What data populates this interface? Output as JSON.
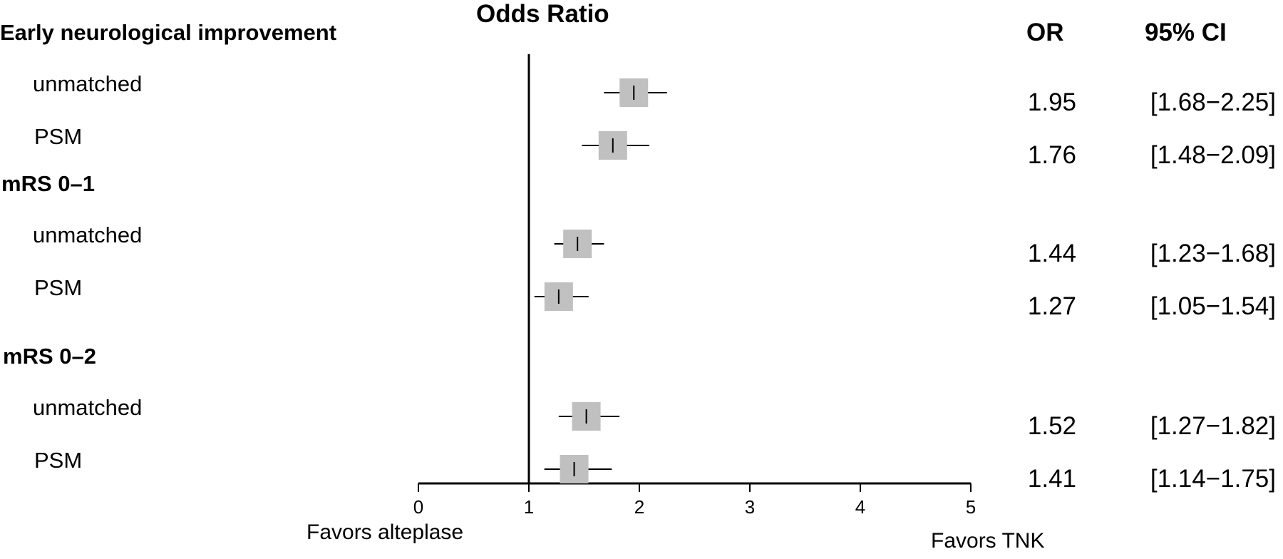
{
  "chart_data": {
    "type": "forest",
    "title": "Odds Ratio",
    "xlim": [
      0,
      5
    ],
    "x_ticks": [
      "0",
      "1",
      "2",
      "3",
      "4",
      "5"
    ],
    "reference_line": 1,
    "left_footer": "Favors alteplase",
    "right_footer": "Favors TNK",
    "col_or_header": "OR",
    "col_ci_header": "95% CI",
    "groups": [
      {
        "label": "Early neurological improvement",
        "rows": [
          {
            "label": "unmatched",
            "or": 1.95,
            "lo": 1.68,
            "hi": 2.25,
            "or_text": "1.95",
            "ci_text": "[1.68−2.25]"
          },
          {
            "label": "PSM",
            "or": 1.76,
            "lo": 1.48,
            "hi": 2.09,
            "or_text": "1.76",
            "ci_text": "[1.48−2.09]"
          }
        ]
      },
      {
        "label": "mRS 0–1",
        "rows": [
          {
            "label": "unmatched",
            "or": 1.44,
            "lo": 1.23,
            "hi": 1.68,
            "or_text": "1.44",
            "ci_text": "[1.23−1.68]"
          },
          {
            "label": "PSM",
            "or": 1.27,
            "lo": 1.05,
            "hi": 1.54,
            "or_text": "1.27",
            "ci_text": "[1.05−1.54]"
          }
        ]
      },
      {
        "label": "mRS 0–2",
        "rows": [
          {
            "label": "unmatched",
            "or": 1.52,
            "lo": 1.27,
            "hi": 1.82,
            "or_text": "1.52",
            "ci_text": "[1.27−1.82]"
          },
          {
            "label": "PSM",
            "or": 1.41,
            "lo": 1.14,
            "hi": 1.75,
            "or_text": "1.41",
            "ci_text": "[1.14−1.75]"
          }
        ]
      }
    ],
    "box_color": "#c0c0c0"
  }
}
